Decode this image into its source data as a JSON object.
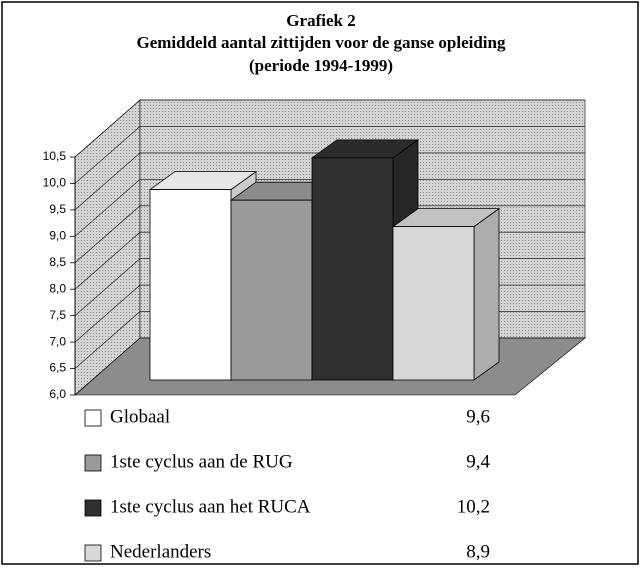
{
  "chart_data": {
    "type": "bar3d",
    "title": [
      "Grafiek 2",
      "Gemiddeld aantal zittijden voor de ganse opleiding",
      "(periode 1994-1999)"
    ],
    "categories": [
      "Globaal",
      "1ste cyclus aan de RUG",
      "1ste cyclus aan het RUCA",
      "Nederlanders"
    ],
    "values": [
      9.6,
      9.4,
      10.2,
      8.9
    ],
    "value_labels": [
      "9,6",
      "9,4",
      "10,2",
      "8,9"
    ],
    "colors": [
      "#ffffff",
      "#9a9a9a",
      "#303030",
      "#d8d8d8"
    ],
    "ylim": [
      6,
      10.5
    ],
    "yticks": [
      {
        "value": 6,
        "label": "6,0"
      },
      {
        "value": 6.5,
        "label": "6,5"
      },
      {
        "value": 7,
        "label": "7,0"
      },
      {
        "value": 7.5,
        "label": "7,5"
      },
      {
        "value": 8,
        "label": "8,0"
      },
      {
        "value": 8.5,
        "label": "8,5"
      },
      {
        "value": 9,
        "label": "9,0"
      },
      {
        "value": 9.5,
        "label": "9,5"
      },
      {
        "value": 10,
        "label": "10,0"
      },
      {
        "value": 10.5,
        "label": "10,5"
      }
    ],
    "grid": true
  }
}
